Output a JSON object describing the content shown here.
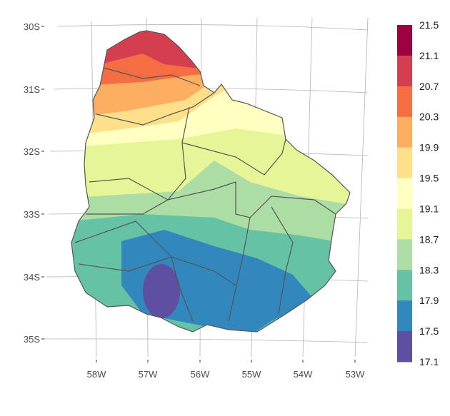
{
  "map": {
    "lat_ticks": [
      "30S",
      "31S",
      "32S",
      "33S",
      "34S",
      "35S"
    ],
    "lon_ticks": [
      "58W",
      "57W",
      "56W",
      "55W",
      "54W",
      "53W"
    ]
  },
  "legend": {
    "breaks": [
      "21.5",
      "21.1",
      "20.7",
      "20.3",
      "19.9",
      "19.5",
      "19.1",
      "18.7",
      "18.3",
      "17.9",
      "17.5",
      "17.1"
    ],
    "colors": [
      "#9E0142",
      "#D53E4F",
      "#F46D43",
      "#FDAE61",
      "#FEE08B",
      "#FFFFBF",
      "#E6F598",
      "#ABDDA4",
      "#66C2A5",
      "#3288BD",
      "#5E4FA2"
    ]
  }
}
